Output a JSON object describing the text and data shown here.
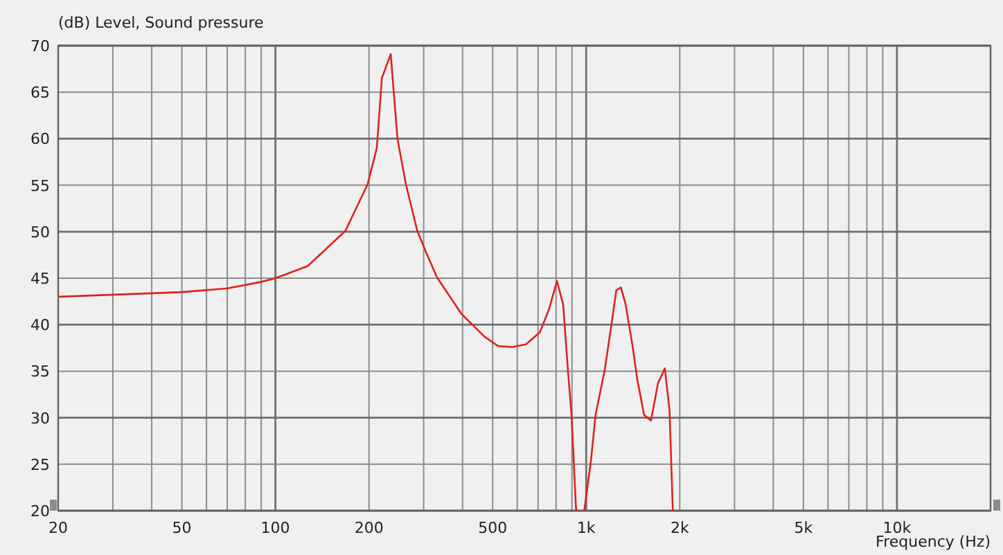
{
  "chart_data": {
    "type": "line",
    "xlabel": "Frequency  (Hz)",
    "ylabel": "(dB)  Level, Sound pressure",
    "log": "x",
    "grid": true,
    "xlim": [
      20,
      20000
    ],
    "ylim": [
      20,
      70
    ],
    "xticks": [
      20,
      {
        "value": 30,
        "label": null
      },
      {
        "value": 40,
        "label": null
      },
      50,
      {
        "value": 60,
        "label": null
      },
      {
        "value": 70,
        "label": null
      },
      {
        "value": 80,
        "label": null
      },
      {
        "value": 90,
        "label": null
      },
      100,
      200,
      {
        "value": 300,
        "label": null
      },
      {
        "value": 400,
        "label": null
      },
      500,
      {
        "value": 600,
        "label": null
      },
      {
        "value": 700,
        "label": null
      },
      {
        "value": 800,
        "label": null
      },
      {
        "value": 900,
        "label": null
      },
      {
        "value": 1000,
        "label": "1k"
      },
      {
        "value": 2000,
        "label": "2k"
      },
      {
        "value": 3000,
        "label": null
      },
      {
        "value": 4000,
        "label": null
      },
      {
        "value": 5000,
        "label": "5k"
      },
      {
        "value": 6000,
        "label": null
      },
      {
        "value": 7000,
        "label": null
      },
      {
        "value": 8000,
        "label": null
      },
      {
        "value": 9000,
        "label": null
      },
      {
        "value": 10000,
        "label": "10k"
      }
    ],
    "yticks": [
      20,
      25,
      30,
      35,
      40,
      45,
      50,
      55,
      60,
      65,
      70
    ],
    "series": [
      {
        "color": "#e02020",
        "x": [
          20,
          50,
          70,
          90,
          100,
          127,
          168,
          198,
          212,
          220,
          235,
          247,
          263,
          286,
          307,
          331,
          396,
          471,
          521,
          578,
          641,
          710,
          760,
          805,
          843,
          873,
          897,
          927,
          930,
          960,
          986,
          1035,
          1072,
          1148,
          1208,
          1250,
          1293,
          1339,
          1410,
          1459,
          1535,
          1616,
          1702,
          1791,
          1854,
          1900
        ],
        "values": [
          43.0,
          43.5,
          43.9,
          44.6,
          45.0,
          46.3,
          50.1,
          55.1,
          59.0,
          66.5,
          69.1,
          60.0,
          55.1,
          50.1,
          47.6,
          45.1,
          41.2,
          38.7,
          37.7,
          37.6,
          37.9,
          39.2,
          41.7,
          44.7,
          42.2,
          35.2,
          30.3,
          20.3,
          20,
          null,
          20,
          25.3,
          30.3,
          35.2,
          40.2,
          43.7,
          44.0,
          42.2,
          37.7,
          34.2,
          30.3,
          29.7,
          33.7,
          35.3,
          30.8,
          20
        ]
      }
    ]
  }
}
